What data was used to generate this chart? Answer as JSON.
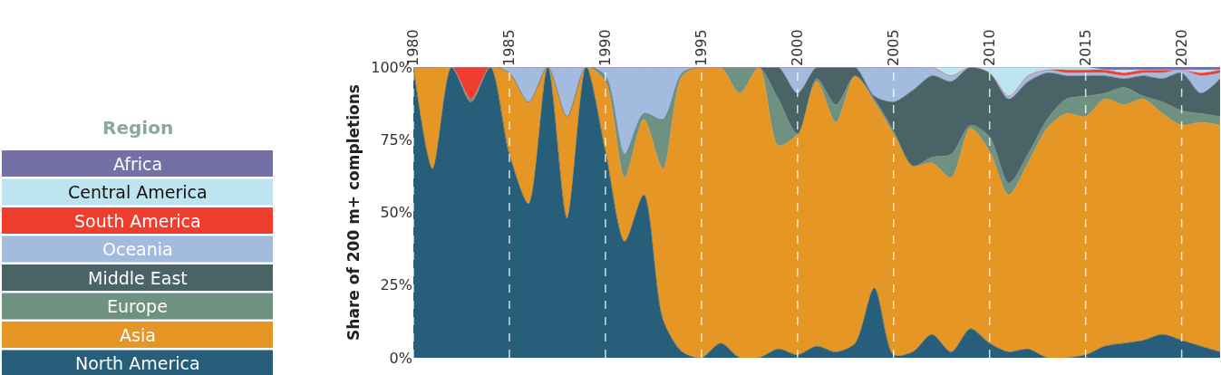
{
  "chart_data": {
    "type": "area",
    "stacked": true,
    "ylabel": "Share of 200 m+ completions",
    "legend_title": "Region",
    "legend": "left",
    "grid": "x",
    "line_style": "solid",
    "x": [
      1980,
      1981,
      1982,
      1983,
      1984,
      1985,
      1986,
      1987,
      1988,
      1989,
      1990,
      1991,
      1992,
      1993,
      1994,
      1995,
      1996,
      1997,
      1998,
      1999,
      2000,
      2001,
      2002,
      2003,
      2004,
      2005,
      2006,
      2007,
      2008,
      2009,
      2010,
      2011,
      2012,
      2013,
      2014,
      2015,
      2016,
      2017,
      2018,
      2019,
      2020,
      2021,
      2022
    ],
    "xlim": [
      1980,
      2022
    ],
    "xticks": [
      1980,
      1985,
      1990,
      1995,
      2000,
      2005,
      2010,
      2015,
      2020
    ],
    "ylim": [
      0,
      100
    ],
    "yticks": [
      {
        "value": 0,
        "label": "0%"
      },
      {
        "value": 25,
        "label": "25%"
      },
      {
        "value": 50,
        "label": "50%"
      },
      {
        "value": 75,
        "label": "75%"
      },
      {
        "value": 100,
        "label": "100%"
      }
    ],
    "series": [
      {
        "name": "North America",
        "color": "#275f7a",
        "values": [
          100,
          65,
          100,
          88,
          100,
          70,
          53,
          100,
          48,
          100,
          71,
          40,
          56,
          13,
          2,
          0,
          5,
          0,
          0,
          3,
          1,
          4,
          2,
          5,
          24,
          1,
          2,
          8,
          2,
          10,
          5,
          2,
          3,
          0,
          0,
          1,
          4,
          5,
          6,
          8,
          6,
          4,
          2
        ]
      },
      {
        "name": "Asia",
        "color": "#e59625",
        "values": [
          0,
          35,
          0,
          0,
          0,
          28,
          35,
          0,
          35,
          0,
          24,
          22,
          26,
          52,
          95,
          100,
          95,
          91,
          100,
          70,
          76,
          91,
          79,
          92,
          64,
          76,
          64,
          59,
          60,
          69,
          66,
          54,
          64,
          79,
          84,
          82,
          85,
          82,
          83,
          76,
          74,
          77,
          78
        ]
      },
      {
        "name": "Europe",
        "color": "#6f9182",
        "values": [
          0,
          0,
          0,
          1,
          0,
          0,
          0,
          0,
          0,
          0,
          2,
          8,
          2,
          17,
          1,
          0,
          0,
          9,
          0,
          16,
          0,
          1,
          6,
          0,
          1,
          1,
          0,
          2,
          8,
          1,
          5,
          4,
          3,
          3,
          5,
          7,
          2,
          6,
          1,
          4,
          5,
          3,
          3
        ]
      },
      {
        "name": "Middle East",
        "color": "#4a6366",
        "values": [
          0,
          0,
          0,
          0,
          0,
          0,
          0,
          0,
          0,
          0,
          0,
          0,
          0,
          0,
          0,
          0,
          0,
          0,
          0,
          11,
          14,
          4,
          13,
          3,
          1,
          10,
          26,
          28,
          25,
          20,
          22,
          29,
          25,
          16,
          8,
          7,
          6,
          3,
          7,
          8,
          13,
          7,
          13
        ]
      },
      {
        "name": "Oceania",
        "color": "#a2bbdf",
        "values": [
          0,
          0,
          0,
          0,
          0,
          2,
          12,
          0,
          17,
          0,
          3,
          30,
          16,
          18,
          2,
          0,
          0,
          0,
          0,
          0,
          9,
          0,
          0,
          0,
          10,
          12,
          8,
          3,
          2,
          0,
          0,
          1,
          2,
          1,
          1,
          1,
          1,
          1,
          1,
          2,
          1,
          6,
          2
        ]
      },
      {
        "name": "South America",
        "color": "#ef3e2e",
        "values": [
          0,
          0,
          0,
          11,
          0,
          0,
          0,
          0,
          0,
          0,
          0,
          0,
          0,
          0,
          0,
          0,
          0,
          0,
          0,
          0,
          0,
          0,
          0,
          0,
          0,
          0,
          0,
          0,
          0,
          0,
          0,
          0,
          0,
          0,
          1,
          1,
          1,
          1,
          1,
          1,
          0,
          1,
          1
        ]
      },
      {
        "name": "Central America",
        "color": "#bee5ef",
        "values": [
          0,
          0,
          0,
          0,
          0,
          0,
          0,
          0,
          0,
          0,
          0,
          0,
          0,
          0,
          0,
          0,
          0,
          0,
          0,
          0,
          0,
          0,
          0,
          0,
          0,
          0,
          0,
          0,
          3,
          0,
          2,
          10,
          3,
          1,
          1,
          1,
          0,
          1,
          0,
          0,
          0,
          1,
          0
        ]
      },
      {
        "name": "Africa",
        "color": "#7470a6",
        "values": [
          0,
          0,
          0,
          0,
          0,
          0,
          0,
          0,
          0,
          0,
          0,
          0,
          0,
          0,
          0,
          0,
          0,
          0,
          0,
          0,
          0,
          0,
          0,
          0,
          0,
          0,
          0,
          0,
          0,
          0,
          0,
          0,
          0,
          0,
          0,
          0,
          1,
          1,
          1,
          1,
          1,
          1,
          1
        ]
      }
    ]
  }
}
